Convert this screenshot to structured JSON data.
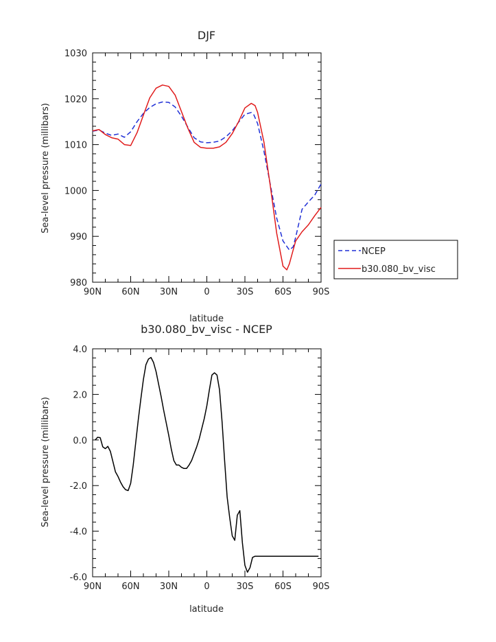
{
  "chart_data": [
    {
      "type": "line",
      "title": "DJF",
      "xlabel": "latitude",
      "ylabel": "Sea-level pressure (millibars)",
      "xlim": [
        -90,
        90
      ],
      "ylim": [
        980,
        1030
      ],
      "x_ticks": [
        -90,
        -60,
        -30,
        0,
        30,
        60,
        90
      ],
      "x_tick_labels": [
        "90N",
        "60N",
        "30N",
        "0",
        "30S",
        "60S",
        "90S"
      ],
      "y_ticks": [
        980,
        990,
        1000,
        1010,
        1020,
        1030
      ],
      "y_tick_labels": [
        "980",
        "990",
        "1000",
        "1010",
        "1020",
        "1030"
      ],
      "legend_position": "right",
      "series": [
        {
          "name": "NCEP",
          "color": "#1f2fd6",
          "dash": "dashed",
          "x": [
            -90,
            -85,
            -80,
            -75,
            -70,
            -65,
            -60,
            -55,
            -50,
            -45,
            -40,
            -35,
            -30,
            -25,
            -20,
            -15,
            -10,
            -5,
            0,
            5,
            10,
            15,
            20,
            25,
            30,
            35,
            37,
            40,
            45,
            50,
            55,
            60,
            65,
            68,
            70,
            75,
            80,
            85,
            90
          ],
          "values": [
            1012.9,
            1013.2,
            1012.5,
            1012.0,
            1012.3,
            1011.6,
            1012.8,
            1015.0,
            1016.8,
            1018.1,
            1018.9,
            1019.3,
            1019.2,
            1018.2,
            1016.2,
            1013.8,
            1011.5,
            1010.6,
            1010.4,
            1010.5,
            1010.8,
            1011.7,
            1013.0,
            1014.9,
            1016.6,
            1017.0,
            1016.5,
            1014.6,
            1008.5,
            1001.3,
            994.0,
            989.0,
            987.0,
            987.7,
            989.8,
            995.9,
            997.5,
            999.0,
            1001.4
          ]
        },
        {
          "name": "b30.080_bv_visc",
          "color": "#e01a1a",
          "dash": "solid",
          "x": [
            -90,
            -85,
            -80,
            -75,
            -70,
            -65,
            -60,
            -55,
            -50,
            -45,
            -40,
            -35,
            -30,
            -25,
            -20,
            -15,
            -10,
            -5,
            0,
            5,
            10,
            15,
            20,
            25,
            30,
            35,
            38,
            40,
            45,
            50,
            55,
            60,
            63,
            65,
            68,
            70,
            75,
            80,
            85,
            90
          ],
          "values": [
            1013.0,
            1013.3,
            1012.2,
            1011.5,
            1011.2,
            1010.0,
            1009.8,
            1012.6,
            1016.4,
            1020.2,
            1022.3,
            1023.0,
            1022.7,
            1020.8,
            1017.2,
            1013.6,
            1010.5,
            1009.4,
            1009.2,
            1009.2,
            1009.5,
            1010.5,
            1012.4,
            1015.0,
            1018.0,
            1019.0,
            1018.5,
            1017.0,
            1010.5,
            1001.0,
            990.7,
            983.5,
            982.7,
            984.0,
            987.0,
            989.0,
            991.0,
            992.5,
            994.5,
            996.3
          ]
        }
      ]
    },
    {
      "type": "line",
      "title": "b30.080_bv_visc - NCEP",
      "xlabel": "latitude",
      "ylabel": "Sea-level pressure (millibars)",
      "xlim": [
        -90,
        90
      ],
      "ylim": [
        -6.0,
        4.0
      ],
      "x_ticks": [
        -90,
        -60,
        -30,
        0,
        30,
        60,
        90
      ],
      "x_tick_labels": [
        "90N",
        "60N",
        "30N",
        "0",
        "30S",
        "60S",
        "90S"
      ],
      "y_ticks": [
        -6.0,
        -4.0,
        -2.0,
        0.0,
        2.0,
        4.0
      ],
      "y_tick_labels": [
        "-6.0",
        "-4.0",
        "-2.0",
        "0.0",
        "2.0",
        "4.0"
      ],
      "series": [
        {
          "color": "#000000",
          "dash": "solid",
          "x": [
            -88,
            -86,
            -84,
            -82,
            -80,
            -78,
            -76,
            -74,
            -72,
            -70,
            -68,
            -66,
            -64,
            -62,
            -60,
            -58,
            -56,
            -54,
            -52,
            -50,
            -48,
            -46,
            -44,
            -42,
            -40,
            -38,
            -36,
            -34,
            -32,
            -30,
            -28,
            -26,
            -24,
            -22,
            -20,
            -18,
            -16,
            -14,
            -12,
            -10,
            -8,
            -6,
            -4,
            -2,
            0,
            2,
            4,
            6,
            8,
            10,
            12,
            14,
            16,
            18,
            20,
            22,
            24,
            26,
            28,
            30,
            32,
            34,
            36,
            38,
            40,
            42,
            44,
            46,
            48,
            50,
            52,
            54,
            56,
            58,
            60,
            62,
            64,
            66,
            68,
            70,
            72,
            74,
            76,
            78,
            80,
            82,
            84,
            86,
            88
          ],
          "values": [
            0.0,
            0.12,
            0.1,
            -0.3,
            -0.38,
            -0.28,
            -0.5,
            -0.95,
            -1.4,
            -1.6,
            -1.85,
            -2.05,
            -2.18,
            -2.22,
            -1.9,
            -1.1,
            -0.1,
            0.9,
            1.8,
            2.65,
            3.3,
            3.55,
            3.62,
            3.4,
            3.0,
            2.45,
            1.9,
            1.3,
            0.75,
            0.2,
            -0.4,
            -0.9,
            -1.1,
            -1.1,
            -1.2,
            -1.25,
            -1.25,
            -1.1,
            -0.9,
            -0.6,
            -0.3,
            0.05,
            0.5,
            0.95,
            1.5,
            2.2,
            2.85,
            2.95,
            2.85,
            2.2,
            0.8,
            -0.9,
            -2.5,
            -3.4,
            -4.2,
            -4.4,
            -3.3,
            -3.1,
            -4.5,
            -5.5,
            -5.8,
            -5.6,
            -5.15,
            -5.1,
            -5.1,
            -5.1,
            -5.1,
            -5.1,
            -5.1,
            -5.1,
            -5.1,
            -5.1,
            -5.1,
            -5.1,
            -5.1,
            -5.1,
            -5.1,
            -5.1,
            -5.1,
            -5.1,
            -5.1,
            -5.1,
            -5.1,
            -5.1,
            -5.1,
            -5.1,
            -5.1,
            -5.1,
            -5.1
          ]
        }
      ]
    }
  ]
}
